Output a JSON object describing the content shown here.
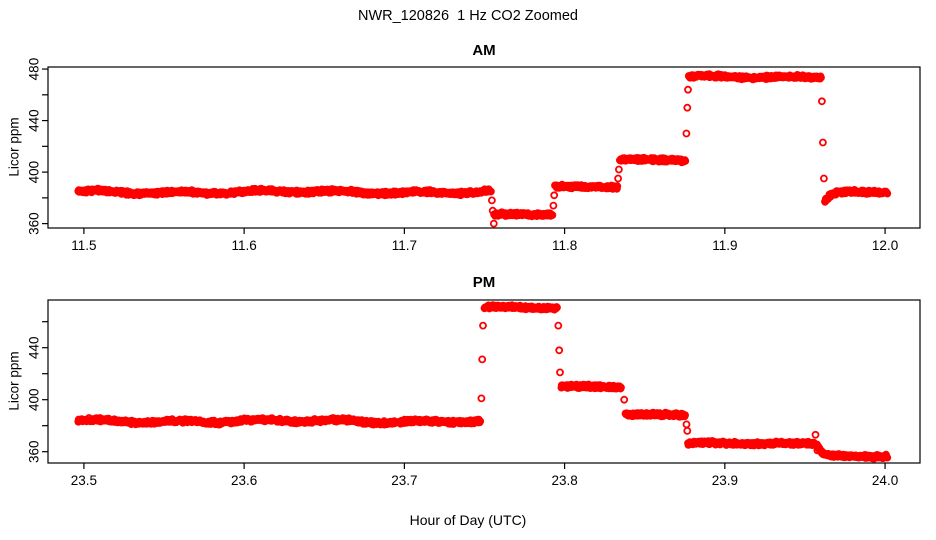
{
  "title": "NWR_120826  1 Hz CO2 Zoomed",
  "xlabel": "Hour of Day (UTC)",
  "colors": {
    "points": "#FF0000",
    "axis": "#000000",
    "background": "#FFFFFF"
  },
  "chart_data": [
    {
      "type": "scatter",
      "title": "AM",
      "ylabel": "Licor ppm",
      "marker": "open-circle",
      "sample_rate_hz": 1,
      "xlim": [
        11.4776,
        12.0218
      ],
      "ylim": [
        356.6,
        481.6
      ],
      "xticks": [
        11.5,
        11.6,
        11.7,
        11.8,
        11.9,
        12.0
      ],
      "xtick_labels": [
        "11.5",
        "11.6",
        "11.7",
        "11.8",
        "11.9",
        "12.0"
      ],
      "yticks_labeled": [
        360,
        400,
        440,
        480
      ],
      "yticks_minor": [
        380,
        420,
        460
      ],
      "segments": [
        {
          "t0": 11.4965,
          "t1": 11.754,
          "value": 384.5,
          "drift": 1.0
        },
        {
          "t0": 11.756,
          "t1": 11.7925,
          "value": 367.0,
          "drift": 0.3
        },
        {
          "t0": 11.794,
          "t1": 11.833,
          "value": 388.5,
          "drift": 0.3
        },
        {
          "t0": 11.8345,
          "t1": 11.8755,
          "value": 409.5,
          "drift": 0.3
        },
        {
          "t0": 11.8775,
          "t1": 11.96,
          "value": 474.0,
          "drift": 0.6
        },
        {
          "t0": 11.9625,
          "t1": 12.0015,
          "value": 384.5,
          "drift": 0.4,
          "approach_from": 376.5,
          "tau": 0.0035
        }
      ],
      "transition_points": [
        [
          11.7546,
          378
        ],
        [
          11.7551,
          370
        ],
        [
          11.7558,
          360
        ],
        [
          11.793,
          374
        ],
        [
          11.7935,
          382
        ],
        [
          11.8334,
          395
        ],
        [
          11.8339,
          402
        ],
        [
          11.876,
          430
        ],
        [
          11.8766,
          450
        ],
        [
          11.877,
          464
        ],
        [
          11.9606,
          455
        ],
        [
          11.9612,
          423
        ],
        [
          11.9618,
          395
        ]
      ]
    },
    {
      "type": "scatter",
      "title": "PM",
      "ylabel": "Licor ppm",
      "marker": "open-circle",
      "sample_rate_hz": 1,
      "xlim": [
        23.4776,
        24.0218
      ],
      "ylim": [
        351.3,
        476.7
      ],
      "xticks": [
        23.5,
        23.6,
        23.7,
        23.8,
        23.9,
        24.0
      ],
      "xtick_labels": [
        "23.5",
        "23.6",
        "23.7",
        "23.8",
        "23.9",
        "24.0"
      ],
      "yticks_labeled": [
        360,
        400,
        440
      ],
      "yticks_minor": [
        380,
        420,
        460
      ],
      "segments": [
        {
          "t0": 23.4965,
          "t1": 23.7475,
          "value": 383.5,
          "drift": 1.0
        },
        {
          "t0": 23.75,
          "t1": 23.7955,
          "value": 471.0,
          "drift": 0.5
        },
        {
          "t0": 23.798,
          "t1": 23.8355,
          "value": 410.0,
          "drift": 0.3
        },
        {
          "t0": 23.838,
          "t1": 23.8755,
          "value": 388.5,
          "drift": 0.3
        },
        {
          "t0": 23.877,
          "t1": 23.956,
          "value": 366.5,
          "drift": 0.4
        },
        {
          "t0": 23.9575,
          "t1": 24.0015,
          "value": 356.5,
          "drift": 0.3,
          "approach_from": 365.0,
          "tau": 0.003
        }
      ],
      "transition_points": [
        [
          23.7481,
          401
        ],
        [
          23.7486,
          431
        ],
        [
          23.7491,
          457
        ],
        [
          23.7961,
          457
        ],
        [
          23.7966,
          438
        ],
        [
          23.7971,
          421
        ],
        [
          23.8372,
          400
        ],
        [
          23.8761,
          381
        ],
        [
          23.8766,
          376
        ],
        [
          23.9566,
          373
        ],
        [
          23.9578,
          361
        ]
      ]
    }
  ]
}
